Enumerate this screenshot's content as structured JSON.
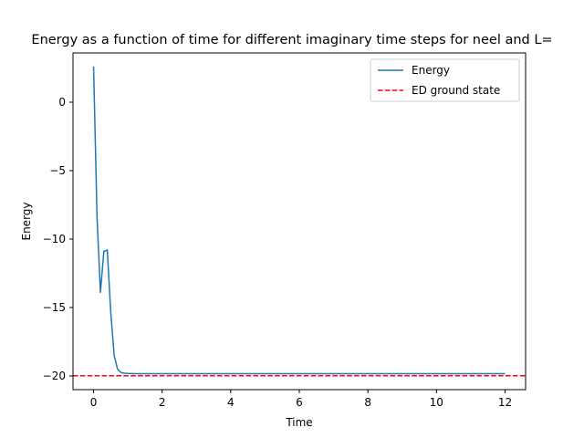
{
  "chart_data": {
    "type": "line",
    "title": "Energy as a function of time for different imaginary time steps for neel and L=",
    "xlabel": "Time",
    "ylabel": "Energy",
    "xlim": [
      -0.6,
      12.6
    ],
    "ylim": [
      -21.0,
      3.6
    ],
    "xticks": [
      0,
      2,
      4,
      6,
      8,
      10,
      12
    ],
    "yticks": [
      0,
      -5,
      -10,
      -15,
      -20
    ],
    "ytick_labels": [
      "0",
      "−5",
      "−10",
      "−15",
      "−20"
    ],
    "grid": false,
    "legend_position": "top-right",
    "series": [
      {
        "name": "Energy",
        "style": "solid",
        "color": "#1f77b4",
        "x": [
          0.0,
          0.1,
          0.2,
          0.3,
          0.4,
          0.5,
          0.6,
          0.7,
          0.8,
          0.9,
          1.0,
          1.2,
          1.5,
          2.0,
          4.0,
          6.0,
          8.0,
          10.0,
          12.0
        ],
        "y": [
          2.6,
          -8.3,
          -13.9,
          -10.9,
          -10.8,
          -15.3,
          -18.5,
          -19.5,
          -19.75,
          -19.8,
          -19.82,
          -19.83,
          -19.83,
          -19.83,
          -19.83,
          -19.83,
          -19.83,
          -19.83,
          -19.83
        ]
      },
      {
        "name": "ED ground state",
        "style": "dashed",
        "color": "#ff0000",
        "hline": -19.98
      }
    ]
  }
}
